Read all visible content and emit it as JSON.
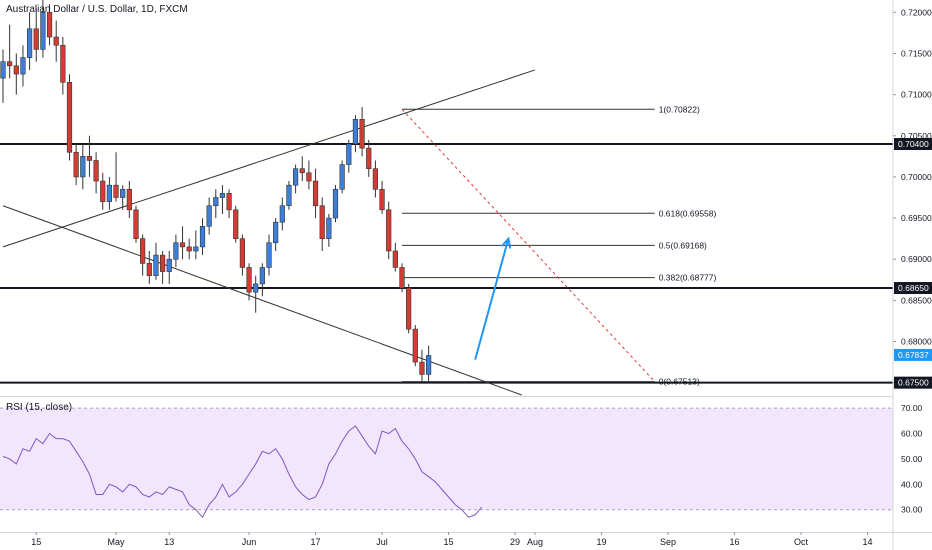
{
  "chart_data": {
    "type": "candlestick",
    "title": "Australian Dollar / U.S. Dollar, 1D, FXCM",
    "colors": {
      "up": "#3d7fd8",
      "down": "#d23c34",
      "rsi": "#7e57c2",
      "rsi_band": "#f2e6fc",
      "arrow": "#2196f3",
      "fib_dash": "#e04040",
      "current": "#2196f3"
    },
    "price_axis": {
      "ticks": [
        "0.72000",
        "0.71500",
        "0.71000",
        "0.70500",
        "0.70000",
        "0.69500",
        "0.69000",
        "0.68500",
        "0.68000",
        "0.67500"
      ],
      "ylim": [
        0.6735,
        0.7215
      ]
    },
    "time_axis": {
      "ticks": [
        {
          "label": "15",
          "index": 5
        },
        {
          "label": "May",
          "index": 17
        },
        {
          "label": "13",
          "index": 25
        },
        {
          "label": "Jun",
          "index": 37
        },
        {
          "label": "17",
          "index": 47
        },
        {
          "label": "Jul",
          "index": 57
        },
        {
          "label": "15",
          "index": 67
        },
        {
          "label": "29",
          "index": 77
        },
        {
          "label": "Aug",
          "index": 80
        },
        {
          "label": "19",
          "index": 90
        },
        {
          "label": "Sep",
          "index": 100
        },
        {
          "label": "16",
          "index": 110
        },
        {
          "label": "Oct",
          "index": 120
        },
        {
          "label": "14",
          "index": 130
        }
      ]
    },
    "candles": [
      [
        0.712,
        0.7155,
        0.709,
        0.714
      ],
      [
        0.714,
        0.7185,
        0.712,
        0.7135
      ],
      [
        0.7135,
        0.715,
        0.71,
        0.7125
      ],
      [
        0.7125,
        0.716,
        0.711,
        0.7145
      ],
      [
        0.7145,
        0.72,
        0.713,
        0.718
      ],
      [
        0.718,
        0.7205,
        0.714,
        0.7155
      ],
      [
        0.7155,
        0.7215,
        0.7145,
        0.72
      ],
      [
        0.72,
        0.721,
        0.716,
        0.717
      ],
      [
        0.717,
        0.719,
        0.714,
        0.716
      ],
      [
        0.716,
        0.717,
        0.71,
        0.7115
      ],
      [
        0.7115,
        0.7125,
        0.702,
        0.703
      ],
      [
        0.703,
        0.704,
        0.699,
        0.7
      ],
      [
        0.7,
        0.704,
        0.6985,
        0.7025
      ],
      [
        0.7025,
        0.705,
        0.7,
        0.702
      ],
      [
        0.702,
        0.703,
        0.698,
        0.6995
      ],
      [
        0.6995,
        0.7005,
        0.696,
        0.697
      ],
      [
        0.697,
        0.7,
        0.696,
        0.699
      ],
      [
        0.699,
        0.703,
        0.697,
        0.6975
      ],
      [
        0.6975,
        0.699,
        0.696,
        0.6985
      ],
      [
        0.6985,
        0.6995,
        0.695,
        0.696
      ],
      [
        0.696,
        0.6965,
        0.692,
        0.6925
      ],
      [
        0.6925,
        0.693,
        0.688,
        0.6895
      ],
      [
        0.6895,
        0.691,
        0.687,
        0.688
      ],
      [
        0.688,
        0.692,
        0.6875,
        0.6905
      ],
      [
        0.6905,
        0.691,
        0.687,
        0.6885
      ],
      [
        0.6885,
        0.691,
        0.687,
        0.69
      ],
      [
        0.69,
        0.693,
        0.689,
        0.692
      ],
      [
        0.692,
        0.694,
        0.69,
        0.6915
      ],
      [
        0.6915,
        0.6925,
        0.69,
        0.691
      ],
      [
        0.691,
        0.6935,
        0.69,
        0.6915
      ],
      [
        0.6915,
        0.695,
        0.6905,
        0.694
      ],
      [
        0.694,
        0.6975,
        0.693,
        0.6965
      ],
      [
        0.6965,
        0.6985,
        0.695,
        0.6975
      ],
      [
        0.6975,
        0.699,
        0.6955,
        0.698
      ],
      [
        0.698,
        0.6985,
        0.695,
        0.696
      ],
      [
        0.696,
        0.6965,
        0.692,
        0.6925
      ],
      [
        0.6925,
        0.693,
        0.688,
        0.689
      ],
      [
        0.689,
        0.6895,
        0.685,
        0.686
      ],
      [
        0.686,
        0.688,
        0.6835,
        0.687
      ],
      [
        0.687,
        0.6895,
        0.6855,
        0.689
      ],
      [
        0.689,
        0.693,
        0.688,
        0.692
      ],
      [
        0.692,
        0.695,
        0.691,
        0.6945
      ],
      [
        0.6945,
        0.6975,
        0.6935,
        0.6965
      ],
      [
        0.6965,
        0.6995,
        0.696,
        0.699
      ],
      [
        0.699,
        0.7015,
        0.698,
        0.701
      ],
      [
        0.701,
        0.7025,
        0.6995,
        0.7005
      ],
      [
        0.7005,
        0.702,
        0.6985,
        0.6995
      ],
      [
        0.6995,
        0.701,
        0.695,
        0.6965
      ],
      [
        0.6965,
        0.6975,
        0.691,
        0.6925
      ],
      [
        0.6925,
        0.6955,
        0.6915,
        0.695
      ],
      [
        0.695,
        0.699,
        0.6945,
        0.6985
      ],
      [
        0.6985,
        0.702,
        0.698,
        0.7015
      ],
      [
        0.7015,
        0.7045,
        0.7005,
        0.704
      ],
      [
        0.704,
        0.7075,
        0.703,
        0.707
      ],
      [
        0.707,
        0.7085,
        0.7025,
        0.7035
      ],
      [
        0.7035,
        0.7045,
        0.7,
        0.701
      ],
      [
        0.701,
        0.702,
        0.6975,
        0.6985
      ],
      [
        0.6985,
        0.6995,
        0.6955,
        0.696
      ],
      [
        0.696,
        0.697,
        0.69,
        0.691
      ],
      [
        0.691,
        0.692,
        0.6885,
        0.689
      ],
      [
        0.689,
        0.6895,
        0.686,
        0.6865
      ],
      [
        0.6865,
        0.687,
        0.681,
        0.6815
      ],
      [
        0.6815,
        0.682,
        0.677,
        0.6775
      ],
      [
        0.6775,
        0.679,
        0.6751,
        0.676
      ],
      [
        0.676,
        0.6795,
        0.6752,
        0.6783
      ]
    ],
    "horizontal_levels": [
      {
        "price": 0.704,
        "label": "0.70400"
      },
      {
        "price": 0.6865,
        "label": "0.68650"
      },
      {
        "price": 0.675,
        "label": "0.67500"
      }
    ],
    "current_price": {
      "price": 0.67837,
      "label": "0.67837"
    },
    "fibonacci": {
      "from_index": 60,
      "to_index": 98,
      "levels": [
        {
          "price": 0.70822,
          "label": "1(0.70822)"
        },
        {
          "price": 0.69558,
          "label": "0.618(0.69558)"
        },
        {
          "price": 0.69168,
          "label": "0.5(0.69168)"
        },
        {
          "price": 0.68777,
          "label": "0.382(0.68777)"
        },
        {
          "price": 0.67513,
          "label": "0(0.67513)"
        }
      ]
    },
    "trendlines": [
      {
        "x1": 0,
        "y1": 0.6915,
        "x2": 80,
        "y2": 0.713
      },
      {
        "x1": 0,
        "y1": 0.6965,
        "x2": 78,
        "y2": 0.6735
      }
    ],
    "dashed_line": {
      "x1": 60,
      "y1": 0.70822,
      "x2": 98,
      "y2": 0.67513
    },
    "arrow": {
      "x1": 71,
      "y1": 0.6778,
      "x2": 76,
      "y2": 0.6925
    },
    "rsi": {
      "title": "RSI (15, close)",
      "ticks": [
        "70.00",
        "60.00",
        "50.00",
        "40.00",
        "30.00"
      ],
      "band": [
        30,
        70
      ],
      "values": [
        51,
        50,
        48,
        54,
        53,
        58,
        56,
        60,
        58,
        58,
        57,
        53,
        49,
        44,
        36,
        36,
        40,
        39,
        37,
        40,
        39,
        36,
        35,
        37,
        36,
        39,
        38,
        37,
        32,
        30,
        27,
        32,
        35,
        40,
        35,
        37,
        40,
        44,
        48,
        53,
        52,
        54,
        50,
        44,
        39,
        36,
        34,
        35,
        40,
        48,
        52,
        57,
        61,
        63,
        59,
        55,
        52,
        61,
        60,
        62,
        57,
        54,
        50,
        45,
        43,
        41,
        38,
        35,
        32,
        30,
        27,
        28,
        31
      ]
    }
  }
}
